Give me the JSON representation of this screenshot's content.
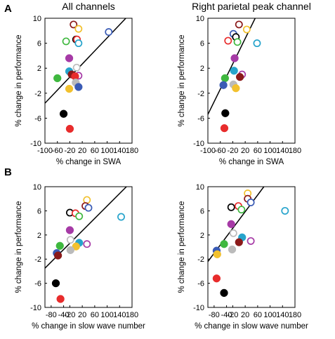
{
  "panel_letters": [
    "A",
    "B"
  ],
  "chart_data": [
    {
      "type": "scatter",
      "title": "All channels",
      "xlabel": "% change in SWA",
      "ylabel": "% change in performance",
      "xlim": [
        -100,
        180
      ],
      "ylim": [
        -10,
        10
      ],
      "xticks": [
        -100,
        -60,
        -20,
        20,
        60,
        100,
        140,
        180
      ],
      "yticks": [
        -10,
        -6,
        -2,
        2,
        6,
        10
      ],
      "grid": false,
      "fit_line": [
        [
          -100,
          -3.6
        ],
        [
          160,
          10
        ]
      ],
      "points": [
        {
          "x": -8,
          "y": 9,
          "color": "#8b1a1a",
          "filled": false
        },
        {
          "x": 8,
          "y": 8.3,
          "color": "#f2c12e",
          "filled": false
        },
        {
          "x": -32,
          "y": 6.3,
          "color": "#3fb83f",
          "filled": false
        },
        {
          "x": 0,
          "y": 6.6,
          "color": "#000000",
          "filled": false
        },
        {
          "x": 3,
          "y": 6.6,
          "color": "#e82c2c",
          "filled": false
        },
        {
          "x": 8,
          "y": 6.0,
          "color": "#27a4cc",
          "filled": false
        },
        {
          "x": 105,
          "y": 7.8,
          "color": "#3a5bb5",
          "filled": false
        },
        {
          "x": -22,
          "y": 3.6,
          "color": "#a63aa6",
          "filled": true
        },
        {
          "x": 2,
          "y": 2.1,
          "color": "#bbbbbb",
          "filled": false
        },
        {
          "x": 8,
          "y": 0.8,
          "color": "#a63aa6",
          "filled": false
        },
        {
          "x": -22,
          "y": 1.5,
          "color": "#27a4cc",
          "filled": true
        },
        {
          "x": -14,
          "y": 1.0,
          "color": "#8b1a1a",
          "filled": true
        },
        {
          "x": -60,
          "y": 0.4,
          "color": "#3fb83f",
          "filled": true
        },
        {
          "x": -3,
          "y": 0.7,
          "color": "#e82c2c",
          "filled": true
        },
        {
          "x": -1,
          "y": -0.3,
          "color": "#bbbbbb",
          "filled": true
        },
        {
          "x": 8,
          "y": -1.0,
          "color": "#3a5bb5",
          "filled": true
        },
        {
          "x": -22,
          "y": -1.3,
          "color": "#f2c12e",
          "filled": true
        },
        {
          "x": -40,
          "y": -5.3,
          "color": "#000000",
          "filled": true
        },
        {
          "x": -20,
          "y": -7.7,
          "color": "#e82c2c",
          "filled": true
        }
      ]
    },
    {
      "type": "scatter",
      "title": "Right parietal peak channel",
      "xlabel": "% change in SWA",
      "ylabel": "% change in performance",
      "xlim": [
        -100,
        180
      ],
      "ylim": [
        -10,
        10
      ],
      "xticks": [
        -100,
        -60,
        -20,
        20,
        60,
        100,
        140,
        180
      ],
      "yticks": [
        -10,
        -6,
        -2,
        2,
        6,
        10
      ],
      "grid": false,
      "fit_line": [
        [
          -100,
          -5.4
        ],
        [
          52,
          10
        ]
      ],
      "points": [
        {
          "x": 0,
          "y": 9,
          "color": "#8b1a1a",
          "filled": false
        },
        {
          "x": 25,
          "y": 8.2,
          "color": "#f2c12e",
          "filled": false
        },
        {
          "x": -18,
          "y": 7.5,
          "color": "#3a5bb5",
          "filled": false
        },
        {
          "x": -10,
          "y": 7.0,
          "color": "#000000",
          "filled": false
        },
        {
          "x": -35,
          "y": 6.4,
          "color": "#e82c2c",
          "filled": false
        },
        {
          "x": -5,
          "y": 6.2,
          "color": "#3fb83f",
          "filled": false
        },
        {
          "x": 58,
          "y": 6.0,
          "color": "#27a4cc",
          "filled": false
        },
        {
          "x": -14,
          "y": 3.6,
          "color": "#a63aa6",
          "filled": true
        },
        {
          "x": -16,
          "y": 1.6,
          "color": "#27a4cc",
          "filled": true
        },
        {
          "x": 10,
          "y": 1.0,
          "color": "#a63aa6",
          "filled": false
        },
        {
          "x": 3,
          "y": 0.6,
          "color": "#8b1a1a",
          "filled": true
        },
        {
          "x": -45,
          "y": 0.4,
          "color": "#3fb83f",
          "filled": true
        },
        {
          "x": -18,
          "y": -0.6,
          "color": "#bbbbbb",
          "filled": true
        },
        {
          "x": -50,
          "y": -0.7,
          "color": "#3a5bb5",
          "filled": true
        },
        {
          "x": -10,
          "y": -1.2,
          "color": "#f2c12e",
          "filled": true
        },
        {
          "x": -44,
          "y": -5.2,
          "color": "#000000",
          "filled": true
        },
        {
          "x": -47,
          "y": -7.6,
          "color": "#e82c2c",
          "filled": true
        }
      ]
    },
    {
      "type": "scatter",
      "title": "",
      "xlabel": "% change in slow wave number",
      "ylabel": "% change in performance",
      "xlim": [
        -100,
        180
      ],
      "ylim": [
        -10,
        10
      ],
      "xticks": [
        -80,
        -40,
        -20,
        20,
        60,
        100,
        140,
        180
      ],
      "xtick_labels": [
        "-80",
        "-40",
        "-20",
        "20",
        "60",
        "100",
        "140",
        "180"
      ],
      "yticks": [
        -10,
        -6,
        -2,
        2,
        6,
        10
      ],
      "grid": false,
      "fit_line": [
        [
          -100,
          -3.5
        ],
        [
          162,
          10
        ]
      ],
      "points": [
        {
          "x": 35,
          "y": 7.8,
          "color": "#f2c12e",
          "filled": false
        },
        {
          "x": 30,
          "y": 6.8,
          "color": "#8b1a1a",
          "filled": false
        },
        {
          "x": 40,
          "y": 6.5,
          "color": "#3a5bb5",
          "filled": false
        },
        {
          "x": -20,
          "y": 5.7,
          "color": "#000000",
          "filled": false
        },
        {
          "x": -2,
          "y": 5.6,
          "color": "#e82c2c",
          "filled": false
        },
        {
          "x": 10,
          "y": 5.1,
          "color": "#3fb83f",
          "filled": false
        },
        {
          "x": 145,
          "y": 5.0,
          "color": "#27a4cc",
          "filled": false
        },
        {
          "x": -20,
          "y": 2.8,
          "color": "#a63aa6",
          "filled": true
        },
        {
          "x": -18,
          "y": 1.2,
          "color": "#bbbbbb",
          "filled": false
        },
        {
          "x": 35,
          "y": 0.5,
          "color": "#a63aa6",
          "filled": false
        },
        {
          "x": 10,
          "y": 0.7,
          "color": "#27a4cc",
          "filled": true
        },
        {
          "x": -52,
          "y": 0.2,
          "color": "#3fb83f",
          "filled": true
        },
        {
          "x": 0,
          "y": 0.1,
          "color": "#f2c12e",
          "filled": true
        },
        {
          "x": -18,
          "y": -0.5,
          "color": "#bbbbbb",
          "filled": true
        },
        {
          "x": -62,
          "y": -1.0,
          "color": "#3a5bb5",
          "filled": true
        },
        {
          "x": -58,
          "y": -1.4,
          "color": "#8b1a1a",
          "filled": true
        },
        {
          "x": -65,
          "y": -6.0,
          "color": "#000000",
          "filled": true
        },
        {
          "x": -50,
          "y": -8.6,
          "color": "#e82c2c",
          "filled": true
        }
      ]
    },
    {
      "type": "scatter",
      "title": "",
      "xlabel": "% change in slow wave number",
      "ylabel": "% change in performance",
      "xlim": [
        -100,
        180
      ],
      "ylim": [
        -10,
        10
      ],
      "xticks": [
        -80,
        -40,
        -20,
        20,
        60,
        100,
        140,
        180
      ],
      "xtick_labels": [
        "-80",
        "-40",
        "-20",
        "20",
        "60",
        "100",
        "140",
        "180"
      ],
      "yticks": [
        -10,
        -6,
        -2,
        2,
        6,
        10
      ],
      "grid": false,
      "fit_line": [
        [
          -100,
          -2.4
        ],
        [
          80,
          10
        ]
      ],
      "points": [
        {
          "x": 28,
          "y": 8.9,
          "color": "#f2c12e",
          "filled": false
        },
        {
          "x": 28,
          "y": 8.0,
          "color": "#8b1a1a",
          "filled": false
        },
        {
          "x": 38,
          "y": 7.4,
          "color": "#3a5bb5",
          "filled": false
        },
        {
          "x": -25,
          "y": 6.6,
          "color": "#000000",
          "filled": false
        },
        {
          "x": -2,
          "y": 6.8,
          "color": "#e82c2c",
          "filled": false
        },
        {
          "x": 8,
          "y": 6.2,
          "color": "#3fb83f",
          "filled": false
        },
        {
          "x": 148,
          "y": 6.0,
          "color": "#27a4cc",
          "filled": false
        },
        {
          "x": -25,
          "y": 3.8,
          "color": "#a63aa6",
          "filled": true
        },
        {
          "x": -18,
          "y": 2.3,
          "color": "#bbbbbb",
          "filled": false
        },
        {
          "x": 10,
          "y": 1.6,
          "color": "#27a4cc",
          "filled": true
        },
        {
          "x": 38,
          "y": 1.0,
          "color": "#a63aa6",
          "filled": false
        },
        {
          "x": 0,
          "y": 0.8,
          "color": "#8b1a1a",
          "filled": true
        },
        {
          "x": -48,
          "y": 0.5,
          "color": "#3fb83f",
          "filled": true
        },
        {
          "x": -22,
          "y": -0.4,
          "color": "#bbbbbb",
          "filled": true
        },
        {
          "x": -72,
          "y": -0.6,
          "color": "#3a5bb5",
          "filled": true
        },
        {
          "x": -70,
          "y": -1.2,
          "color": "#f2c12e",
          "filled": true
        },
        {
          "x": -72,
          "y": -5.2,
          "color": "#e82c2c",
          "filled": true
        },
        {
          "x": -48,
          "y": -7.6,
          "color": "#000000",
          "filled": true
        }
      ]
    }
  ]
}
